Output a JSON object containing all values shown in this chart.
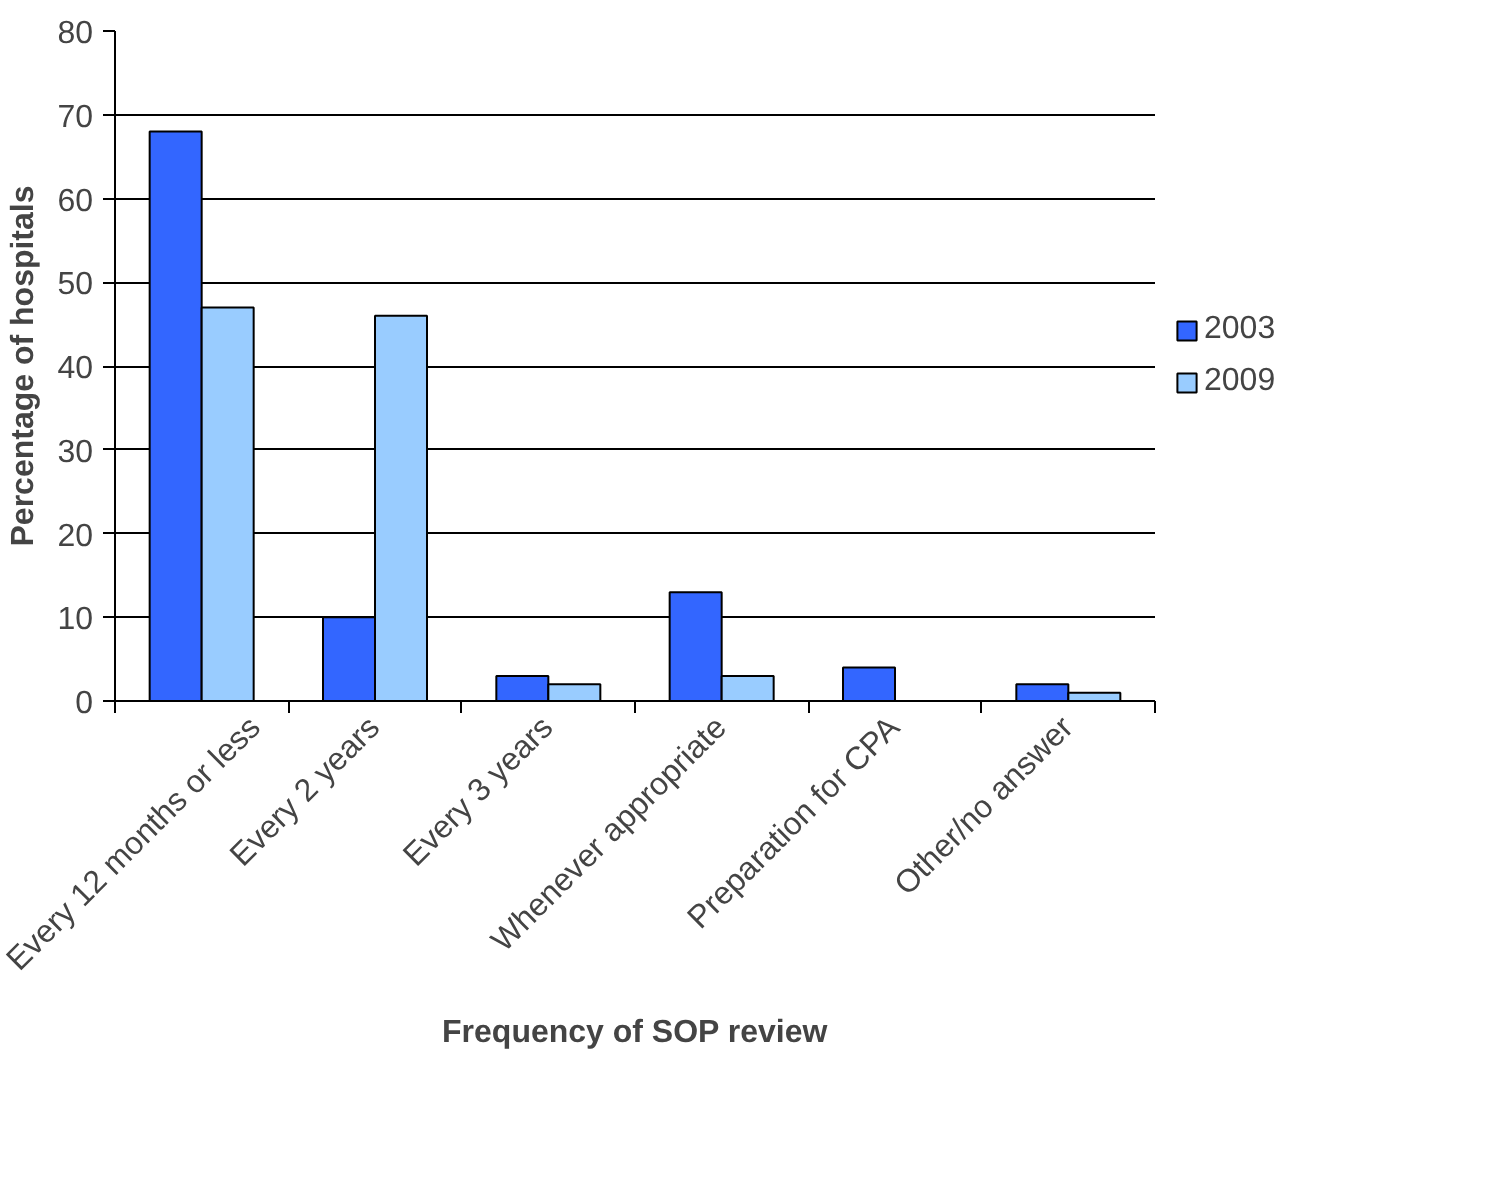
{
  "chart_data": {
    "type": "bar",
    "xlabel": "Frequency of SOP review",
    "ylabel": "Percentage of hospitals",
    "categories": [
      "Every 12 months or less",
      "Every 2 years",
      "Every 3 years",
      "Whenever appropriate",
      "Preparation for CPA",
      "Other/no answer"
    ],
    "series": [
      {
        "name": "2003",
        "color": "#3366ff",
        "values": [
          68,
          10,
          3,
          13,
          4,
          2
        ]
      },
      {
        "name": "2009",
        "color": "#99ccff",
        "values": [
          47,
          46,
          2,
          3,
          null,
          1
        ]
      }
    ],
    "ylim": [
      0,
      80
    ],
    "yticks": [
      0,
      10,
      20,
      30,
      40,
      50,
      60,
      70,
      80
    ],
    "grid": "y",
    "legend": "right"
  }
}
